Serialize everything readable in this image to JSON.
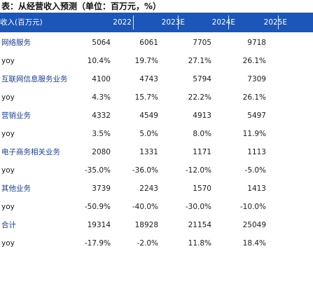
{
  "caption": "表：从经营收入预测（单位：百万元，%）",
  "header": [
    "收入(百万元)",
    "2022",
    "2023E",
    "2024E",
    "2025E"
  ],
  "rows": [
    {
      "label": "网络服务",
      "type": "cn",
      "values": [
        "5064",
        "6061",
        "7705",
        "9718"
      ]
    },
    {
      "label": "yoy",
      "type": "yoy",
      "values": [
        "10.4%",
        "19.7%",
        "27.1%",
        "26.1%"
      ]
    },
    {
      "label": "互联网信息服务业务",
      "type": "cn",
      "values": [
        "4100",
        "4743",
        "5794",
        "7309"
      ]
    },
    {
      "label": "yoy",
      "type": "yoy",
      "values": [
        "4.3%",
        "15.7%",
        "22.2%",
        "26.1%"
      ]
    },
    {
      "label": "营销业务",
      "type": "cn",
      "values": [
        "4332",
        "4549",
        "4913",
        "5497"
      ]
    },
    {
      "label": "yoy",
      "type": "yoy",
      "values": [
        "3.5%",
        "5.0%",
        "8.0%",
        "11.9%"
      ]
    },
    {
      "label": "电子商务相关业务",
      "type": "cn",
      "values": [
        "2080",
        "1331",
        "1171",
        "1113"
      ]
    },
    {
      "label": "yoy",
      "type": "yoy",
      "values": [
        "-35.0%",
        "-36.0%",
        "-12.0%",
        "-5.0%"
      ]
    },
    {
      "label": "其他业务",
      "type": "cn",
      "values": [
        "3739",
        "2243",
        "1570",
        "1413"
      ]
    },
    {
      "label": "yoy",
      "type": "yoy",
      "values": [
        "-50.9%",
        "-40.0%",
        "-30.0%",
        "-10.0%"
      ]
    },
    {
      "label": "合计",
      "type": "cn",
      "values": [
        "19314",
        "18928",
        "21154",
        "25049"
      ]
    },
    {
      "label": "yoy",
      "type": "yoy",
      "values": [
        "-17.9%",
        "-2.0%",
        "11.8%",
        "18.4%"
      ]
    }
  ]
}
